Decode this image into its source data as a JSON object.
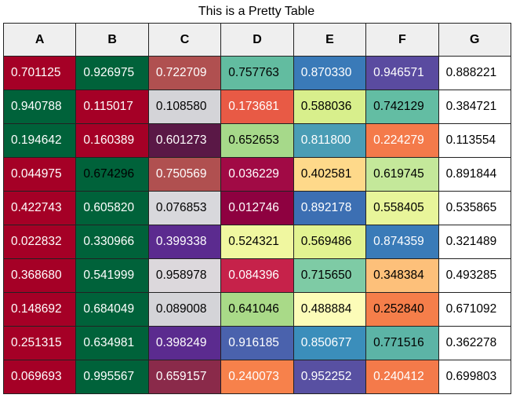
{
  "title": "This is a Pretty Table",
  "table": {
    "header": [
      "A",
      "B",
      "C",
      "D",
      "E",
      "F",
      "G"
    ],
    "header_color": "#efefef",
    "rows": [
      [
        "0.701125",
        "0.926975",
        "0.722709",
        "0.757763",
        "0.870330",
        "0.946571",
        "0.888221"
      ],
      [
        "0.940788",
        "0.115017",
        "0.108580",
        "0.173681",
        "0.588036",
        "0.742129",
        "0.384721"
      ],
      [
        "0.194642",
        "0.160389",
        "0.601273",
        "0.652653",
        "0.811800",
        "0.224279",
        "0.113554"
      ],
      [
        "0.044975",
        "0.674296",
        "0.750569",
        "0.036229",
        "0.402581",
        "0.619745",
        "0.891844"
      ],
      [
        "0.422743",
        "0.605820",
        "0.076853",
        "0.012746",
        "0.892178",
        "0.558405",
        "0.535865"
      ],
      [
        "0.022832",
        "0.330966",
        "0.399338",
        "0.524321",
        "0.569486",
        "0.874359",
        "0.321489"
      ],
      [
        "0.368680",
        "0.541999",
        "0.958978",
        "0.084396",
        "0.715650",
        "0.348384",
        "0.493285"
      ],
      [
        "0.148692",
        "0.684049",
        "0.089008",
        "0.641046",
        "0.488884",
        "0.252840",
        "0.671092"
      ],
      [
        "0.251315",
        "0.634981",
        "0.398249",
        "0.916185",
        "0.850677",
        "0.771516",
        "0.362278"
      ],
      [
        "0.069693",
        "0.995567",
        "0.659157",
        "0.240073",
        "0.952252",
        "0.240412",
        "0.699803"
      ]
    ],
    "cell_colors": [
      [
        "#a50026",
        "#00623a",
        "#b05050",
        "#62bca0",
        "#3a7ab8",
        "#5a4ba0",
        "#ffffff"
      ],
      [
        "#00623a",
        "#a50026",
        "#d4d4d8",
        "#e85a45",
        "#d8ef8c",
        "#63bda3",
        "#ffffff"
      ],
      [
        "#00623a",
        "#a50026",
        "#5a1846",
        "#a6d98a",
        "#4a9db5",
        "#f47a4a",
        "#ffffff"
      ],
      [
        "#a50026",
        "#00623a",
        "#b05050",
        "#a10a45",
        "#fed98a",
        "#c4e89a",
        "#ffffff"
      ],
      [
        "#a50026",
        "#00623a",
        "#d8d8dc",
        "#8e0140",
        "#3c6fb3",
        "#e8f59a",
        "#ffffff"
      ],
      [
        "#a50026",
        "#00623a",
        "#5b2b8f",
        "#f0f7a0",
        "#e2f391",
        "#3a7bb8",
        "#ffffff"
      ],
      [
        "#a50026",
        "#00623a",
        "#dcd8dc",
        "#c6224a",
        "#7ecba5",
        "#fdc07a",
        "#ffffff"
      ],
      [
        "#a50026",
        "#00623a",
        "#d4d4d8",
        "#a9da88",
        "#fcfcb8",
        "#f57e4a",
        "#ffffff"
      ],
      [
        "#a50026",
        "#00623a",
        "#5b2b8f",
        "#4a62ad",
        "#3b8ebb",
        "#5cb4a6",
        "#ffffff"
      ],
      [
        "#a50026",
        "#00623a",
        "#8a2a4a",
        "#f7814b",
        "#5850a2",
        "#f47a4a",
        "#ffffff"
      ]
    ],
    "text_colors": [
      [
        "#fff",
        "#fff",
        "#fff",
        "#000",
        "#fff",
        "#fff",
        "#000"
      ],
      [
        "#fff",
        "#fff",
        "#000",
        "#fff",
        "#000",
        "#000",
        "#000"
      ],
      [
        "#fff",
        "#fff",
        "#fff",
        "#000",
        "#fff",
        "#fff",
        "#000"
      ],
      [
        "#fff",
        "#000",
        "#fff",
        "#fff",
        "#000",
        "#000",
        "#000"
      ],
      [
        "#fff",
        "#fff",
        "#000",
        "#fff",
        "#fff",
        "#000",
        "#000"
      ],
      [
        "#fff",
        "#fff",
        "#fff",
        "#000",
        "#000",
        "#fff",
        "#000"
      ],
      [
        "#fff",
        "#fff",
        "#000",
        "#fff",
        "#000",
        "#000",
        "#000"
      ],
      [
        "#fff",
        "#fff",
        "#000",
        "#000",
        "#000",
        "#000",
        "#000"
      ],
      [
        "#fff",
        "#fff",
        "#fff",
        "#fff",
        "#fff",
        "#000",
        "#000"
      ],
      [
        "#fff",
        "#fff",
        "#fff",
        "#fff",
        "#fff",
        "#fff",
        "#000"
      ]
    ]
  }
}
